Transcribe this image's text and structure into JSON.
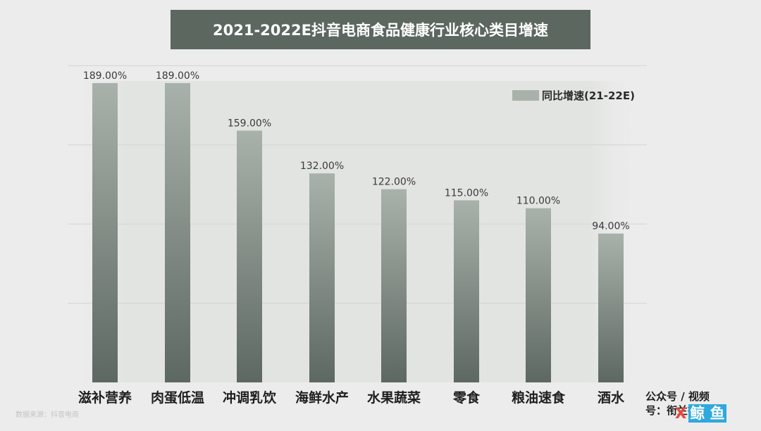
{
  "chart_data": {
    "type": "bar",
    "title": "2021-2022E抖音电商食品健康行业核心类目增速",
    "categories": [
      "滋补营养",
      "肉蛋低温",
      "冲调乳饮",
      "海鲜水产",
      "水果蔬菜",
      "零食",
      "粮油速食",
      "酒水"
    ],
    "series": [
      {
        "name": "同比增速(21-22E)",
        "values": [
          189.0,
          189.0,
          159.0,
          132.0,
          122.0,
          115.0,
          110.0,
          94.0
        ],
        "labels": [
          "189.00%",
          "189.00%",
          "159.00%",
          "132.00%",
          "122.00%",
          "115.00%",
          "110.00%",
          "94.00%"
        ],
        "color": "#a9b2aa"
      }
    ],
    "ylim": [
      0,
      200
    ],
    "grid": true,
    "legend_position": "top-right"
  },
  "source": "数据来源：抖音电商",
  "footer_credit": "公众号 / 视频号：衔兰德老白",
  "logo": {
    "letter": "X",
    "tile_text": "鲸 鱼"
  },
  "colors": {
    "bar_top": "#a9b2aa",
    "bar_bottom": "#5d6862",
    "title_bg": "#5c6760",
    "plot_bg": "#e2e4e1"
  }
}
